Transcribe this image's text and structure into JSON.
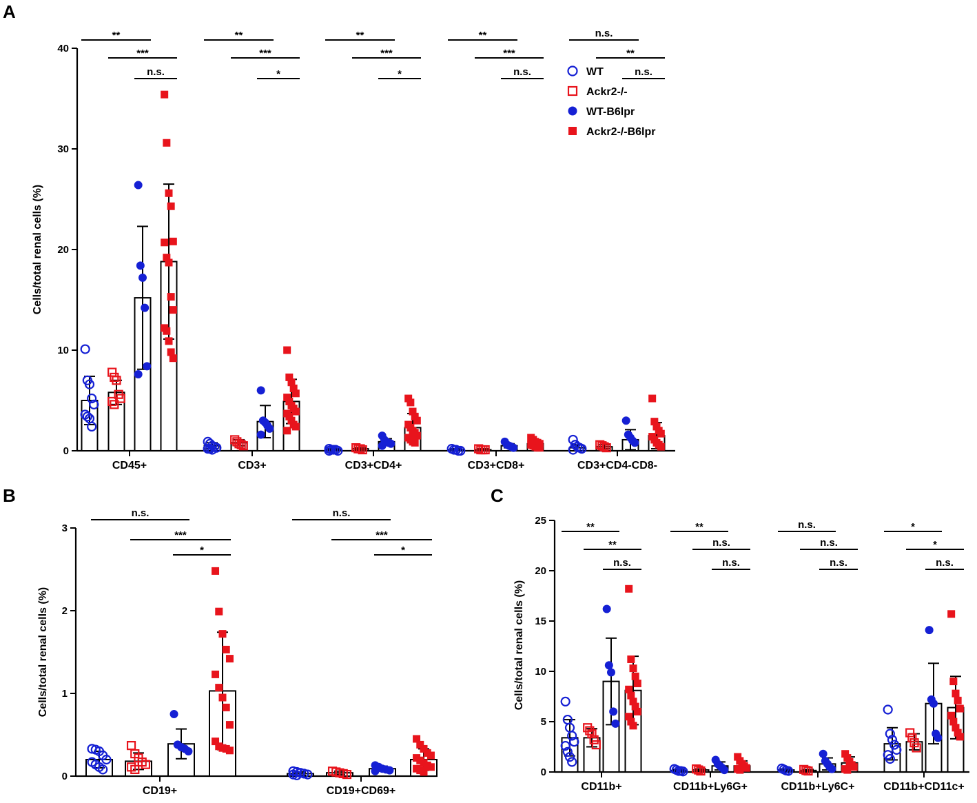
{
  "colors": {
    "wt": "#1520d4",
    "ackr2": "#e8141c",
    "axis": "#000000"
  },
  "legend": [
    {
      "label": "WT",
      "marker": "open-circle",
      "color": "#1520d4"
    },
    {
      "label": "Ackr2-/-",
      "marker": "open-square",
      "color": "#e8141c"
    },
    {
      "label": "WT-B6lpr",
      "marker": "filled-circle",
      "color": "#1520d4"
    },
    {
      "label": "Ackr2-/-B6lpr",
      "marker": "filled-square",
      "color": "#e8141c"
    }
  ],
  "chart_data": [
    {
      "panel": "A",
      "type": "bar",
      "ylabel": "Cells/total renal cells (%)",
      "ylim": [
        0,
        40
      ],
      "yticks": [
        0,
        10,
        20,
        30,
        40
      ],
      "series_names": [
        "WT",
        "Ackr2-/-",
        "WT-B6lpr",
        "Ackr2-/-B6lpr"
      ],
      "categories": [
        {
          "label": "CD45+",
          "groups": [
            {
              "mean": 5.0,
              "sd": 2.4,
              "points": [
                10.1,
                7.0,
                6.6,
                5.2,
                4.6,
                3.6,
                3.4,
                3.2,
                2.4
              ]
            },
            {
              "mean": 5.8,
              "sd": 1.2,
              "points": [
                7.8,
                7.3,
                7.0,
                5.6,
                5.2,
                4.9,
                4.6
              ]
            },
            {
              "mean": 15.2,
              "sd": 7.1,
              "points": [
                26.4,
                18.4,
                17.2,
                14.2,
                8.4,
                7.6
              ]
            },
            {
              "mean": 18.8,
              "sd": 7.7,
              "points": [
                35.4,
                30.6,
                25.6,
                24.3,
                20.8,
                20.7,
                19.2,
                18.7,
                15.3,
                14.0,
                12.2,
                11.9,
                10.9,
                9.8,
                9.2
              ]
            }
          ],
          "sig": [
            [
              "**",
              0,
              2
            ],
            [
              "***",
              1,
              3
            ],
            [
              "n.s.",
              2,
              3
            ]
          ]
        },
        {
          "label": "CD3+",
          "groups": [
            {
              "mean": 0.5,
              "sd": 0.3,
              "points": [
                0.9,
                0.7,
                0.5,
                0.4,
                0.3,
                0.2,
                0.2,
                0.1
              ]
            },
            {
              "mean": 0.8,
              "sd": 0.3,
              "points": [
                1.1,
                0.9,
                0.7,
                0.6,
                0.5
              ]
            },
            {
              "mean": 2.9,
              "sd": 1.6,
              "points": [
                6.0,
                3.0,
                2.8,
                2.5,
                2.2,
                1.6
              ]
            },
            {
              "mean": 4.9,
              "sd": 2.2,
              "points": [
                10.0,
                7.3,
                6.8,
                6.2,
                5.7,
                5.3,
                4.9,
                4.5,
                4.2,
                3.9,
                3.7,
                3.4,
                3.0,
                2.6,
                2.4,
                2.0
              ]
            }
          ],
          "sig": [
            [
              "**",
              0,
              2
            ],
            [
              "***",
              1,
              3
            ],
            [
              "*",
              2,
              3
            ]
          ]
        },
        {
          "label": "CD3+CD4+",
          "groups": [
            {
              "mean": 0.1,
              "sd": 0.1,
              "points": [
                0.2,
                0.1,
                0.1,
                0.1,
                0.0,
                0.0
              ]
            },
            {
              "mean": 0.2,
              "sd": 0.1,
              "points": [
                0.3,
                0.2,
                0.2,
                0.1
              ]
            },
            {
              "mean": 0.9,
              "sd": 0.3,
              "points": [
                1.5,
                1.1,
                0.9,
                0.8,
                0.7,
                0.5
              ]
            },
            {
              "mean": 2.3,
              "sd": 1.4,
              "points": [
                5.2,
                4.8,
                3.9,
                3.4,
                3.0,
                2.6,
                2.3,
                2.0,
                1.8,
                1.5,
                1.3,
                1.1,
                0.9,
                0.8
              ]
            }
          ],
          "sig": [
            [
              "**",
              0,
              2
            ],
            [
              "***",
              1,
              3
            ],
            [
              "*",
              2,
              3
            ]
          ]
        },
        {
          "label": "CD3+CD8+",
          "groups": [
            {
              "mean": 0.1,
              "sd": 0.1,
              "points": [
                0.2,
                0.1,
                0.1,
                0.0,
                0.0
              ]
            },
            {
              "mean": 0.1,
              "sd": 0.1,
              "points": [
                0.2,
                0.1,
                0.1,
                0.1
              ]
            },
            {
              "mean": 0.5,
              "sd": 0.2,
              "points": [
                0.9,
                0.6,
                0.5,
                0.4,
                0.3
              ]
            },
            {
              "mean": 0.7,
              "sd": 0.4,
              "points": [
                1.3,
                1.1,
                0.9,
                0.8,
                0.7,
                0.6,
                0.5,
                0.4,
                0.3,
                0.3
              ]
            }
          ],
          "sig": [
            [
              "**",
              0,
              2
            ],
            [
              "***",
              1,
              3
            ],
            [
              "n.s.",
              2,
              3
            ]
          ]
        },
        {
          "label": "CD3+CD4-CD8-",
          "groups": [
            {
              "mean": 0.3,
              "sd": 0.3,
              "points": [
                1.1,
                0.6,
                0.4,
                0.3,
                0.2,
                0.1
              ]
            },
            {
              "mean": 0.4,
              "sd": 0.2,
              "points": [
                0.6,
                0.5,
                0.4,
                0.3
              ]
            },
            {
              "mean": 1.1,
              "sd": 1.0,
              "points": [
                3.0,
                1.6,
                1.3,
                1.0,
                0.8
              ]
            },
            {
              "mean": 1.5,
              "sd": 1.3,
              "points": [
                5.2,
                2.9,
                2.4,
                2.0,
                1.7,
                1.4,
                1.1,
                0.8,
                0.6,
                0.4
              ]
            }
          ],
          "sig": [
            [
              "n.s.",
              0,
              2
            ],
            [
              "**",
              1,
              3
            ],
            [
              "n.s.",
              2,
              3
            ]
          ]
        }
      ]
    },
    {
      "panel": "B",
      "type": "bar",
      "ylabel": "Cells/total renal cells (%)",
      "ylim": [
        0,
        3
      ],
      "yticks": [
        0,
        1,
        2,
        3
      ],
      "series_names": [
        "WT",
        "Ackr2-/-",
        "WT-B6lpr",
        "Ackr2-/-B6lpr"
      ],
      "categories": [
        {
          "label": "CD19+",
          "groups": [
            {
              "mean": 0.2,
              "sd": 0.1,
              "points": [
                0.33,
                0.32,
                0.3,
                0.25,
                0.2,
                0.17,
                0.14,
                0.11,
                0.08
              ]
            },
            {
              "mean": 0.18,
              "sd": 0.1,
              "points": [
                0.37,
                0.27,
                0.22,
                0.17,
                0.14,
                0.11,
                0.08
              ]
            },
            {
              "mean": 0.39,
              "sd": 0.18,
              "points": [
                0.75,
                0.38,
                0.35,
                0.33,
                0.3
              ]
            },
            {
              "mean": 1.03,
              "sd": 0.71,
              "points": [
                2.48,
                1.99,
                1.72,
                1.53,
                1.42,
                1.23,
                1.07,
                0.95,
                0.83,
                0.62,
                0.42,
                0.36,
                0.34,
                0.33,
                0.31
              ]
            }
          ],
          "sig": [
            [
              "n.s.",
              0,
              2
            ],
            [
              "***",
              1,
              3
            ],
            [
              "*",
              2,
              3
            ]
          ]
        },
        {
          "label": "CD19+CD69+",
          "groups": [
            {
              "mean": 0.03,
              "sd": 0.02,
              "points": [
                0.06,
                0.05,
                0.04,
                0.03,
                0.02,
                0.02,
                0.01
              ]
            },
            {
              "mean": 0.04,
              "sd": 0.02,
              "points": [
                0.06,
                0.05,
                0.04,
                0.03,
                0.02
              ]
            },
            {
              "mean": 0.09,
              "sd": 0.03,
              "points": [
                0.13,
                0.11,
                0.09,
                0.08,
                0.07,
                0.06
              ]
            },
            {
              "mean": 0.2,
              "sd": 0.13,
              "points": [
                0.45,
                0.38,
                0.33,
                0.28,
                0.25,
                0.22,
                0.19,
                0.16,
                0.13,
                0.11,
                0.09,
                0.07,
                0.05
              ]
            }
          ],
          "sig": [
            [
              "n.s.",
              0,
              2
            ],
            [
              "***",
              1,
              3
            ],
            [
              "*",
              2,
              3
            ]
          ]
        }
      ]
    },
    {
      "panel": "C",
      "type": "bar",
      "ylabel": "Cells/total renal cells (%)",
      "ylim": [
        0,
        25
      ],
      "yticks": [
        0,
        5,
        10,
        15,
        20,
        25
      ],
      "series_names": [
        "WT",
        "Ackr2-/-",
        "WT-B6lpr",
        "Ackr2-/-B6lpr"
      ],
      "categories": [
        {
          "label": "CD11b+",
          "groups": [
            {
              "mean": 3.4,
              "sd": 1.8,
              "points": [
                7.0,
                5.2,
                4.4,
                3.6,
                3.0,
                2.6,
                2.0,
                1.5,
                1.0
              ]
            },
            {
              "mean": 3.4,
              "sd": 0.9,
              "points": [
                4.4,
                4.1,
                3.8,
                3.2,
                2.7
              ]
            },
            {
              "mean": 9.0,
              "sd": 4.3,
              "points": [
                16.2,
                10.6,
                9.9,
                6.0,
                4.8
              ]
            },
            {
              "mean": 8.1,
              "sd": 3.4,
              "points": [
                18.2,
                11.2,
                10.3,
                9.5,
                8.8,
                8.2,
                7.6,
                7.0,
                6.5,
                6.0,
                5.5,
                5.0,
                4.6
              ]
            }
          ],
          "sig": [
            [
              "**",
              0,
              2
            ],
            [
              "**",
              1,
              3
            ],
            [
              "n.s.",
              2,
              3
            ]
          ]
        },
        {
          "label": "CD11b+Ly6G+",
          "groups": [
            {
              "mean": 0.15,
              "sd": 0.1,
              "points": [
                0.3,
                0.2,
                0.1,
                0.1,
                0.05
              ]
            },
            {
              "mean": 0.2,
              "sd": 0.1,
              "points": [
                0.3,
                0.2,
                0.1
              ]
            },
            {
              "mean": 0.6,
              "sd": 0.4,
              "points": [
                1.2,
                0.8,
                0.6,
                0.4,
                0.2
              ]
            },
            {
              "mean": 0.6,
              "sd": 0.5,
              "points": [
                1.5,
                1.1,
                0.8,
                0.6,
                0.4,
                0.3,
                0.2
              ]
            }
          ],
          "sig": [
            [
              "**",
              0,
              2
            ],
            [
              "n.s.",
              1,
              3
            ],
            [
              "n.s.",
              2,
              3
            ]
          ]
        },
        {
          "label": "CD11b+Ly6C+",
          "groups": [
            {
              "mean": 0.2,
              "sd": 0.1,
              "points": [
                0.35,
                0.25,
                0.15,
                0.1
              ]
            },
            {
              "mean": 0.15,
              "sd": 0.1,
              "points": [
                0.25,
                0.15,
                0.1
              ]
            },
            {
              "mean": 0.8,
              "sd": 0.6,
              "points": [
                1.8,
                1.1,
                0.8,
                0.5,
                0.3
              ]
            },
            {
              "mean": 0.9,
              "sd": 0.6,
              "points": [
                1.8,
                1.4,
                1.0,
                0.7,
                0.5,
                0.3,
                0.2
              ]
            }
          ],
          "sig": [
            [
              "n.s.",
              0,
              2
            ],
            [
              "n.s.",
              1,
              3
            ],
            [
              "n.s.",
              2,
              3
            ]
          ]
        },
        {
          "label": "CD11b+CD11c+",
          "groups": [
            {
              "mean": 2.8,
              "sd": 1.6,
              "points": [
                6.2,
                3.8,
                3.2,
                2.7,
                2.2,
                1.7,
                1.3
              ]
            },
            {
              "mean": 3.0,
              "sd": 0.8,
              "points": [
                3.9,
                3.4,
                2.9,
                2.4
              ]
            },
            {
              "mean": 6.8,
              "sd": 4.0,
              "points": [
                14.1,
                7.2,
                6.8,
                3.8,
                3.4
              ]
            },
            {
              "mean": 6.4,
              "sd": 3.1,
              "points": [
                15.7,
                9.0,
                7.8,
                7.1,
                6.3,
                5.6,
                5.0,
                4.4,
                3.9,
                3.5
              ]
            }
          ],
          "sig": [
            [
              "*",
              0,
              2
            ],
            [
              "*",
              1,
              3
            ],
            [
              "n.s.",
              2,
              3
            ]
          ]
        }
      ]
    }
  ]
}
